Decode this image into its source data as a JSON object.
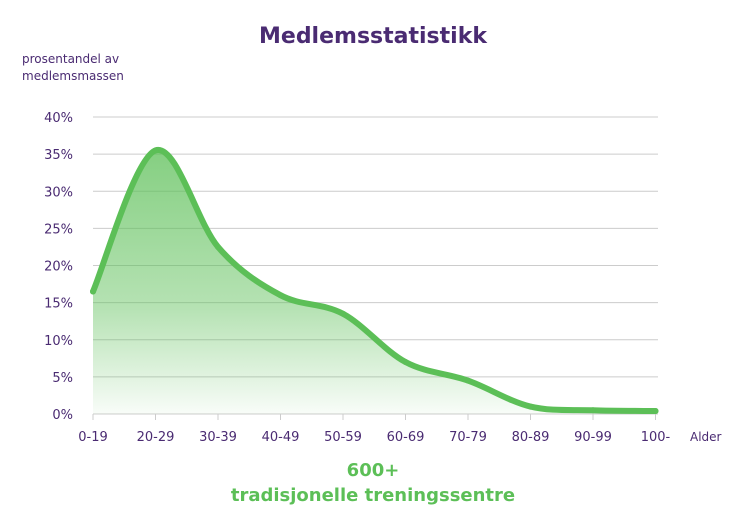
{
  "chart_data": {
    "type": "area",
    "title": "Medlemsstatistikk",
    "ylabel_lines": [
      "prosentandel av",
      "medlemsmassen"
    ],
    "xlabel": "Alder",
    "categories": [
      "0-19",
      "20-29",
      "30-39",
      "40-49",
      "50-59",
      "60-69",
      "70-79",
      "80-89",
      "90-99",
      "100-"
    ],
    "y_ticks": [
      "0%",
      "5%",
      "10%",
      "15%",
      "20%",
      "25%",
      "30%",
      "35%",
      "40%"
    ],
    "series": [
      {
        "values": [
          16.5,
          35.5,
          22.5,
          16,
          13.5,
          7,
          4.5,
          1,
          0.5,
          0.4
        ]
      }
    ],
    "ylim": [
      0,
      40
    ],
    "grid": true,
    "line_color": "#5cbf57",
    "fill_color": "#5cbf57"
  },
  "footer": {
    "line1": "600+",
    "line2": "tradisjonelle treningssentre"
  },
  "colors": {
    "title": "#4a2b72",
    "grid": "#cccccc"
  }
}
